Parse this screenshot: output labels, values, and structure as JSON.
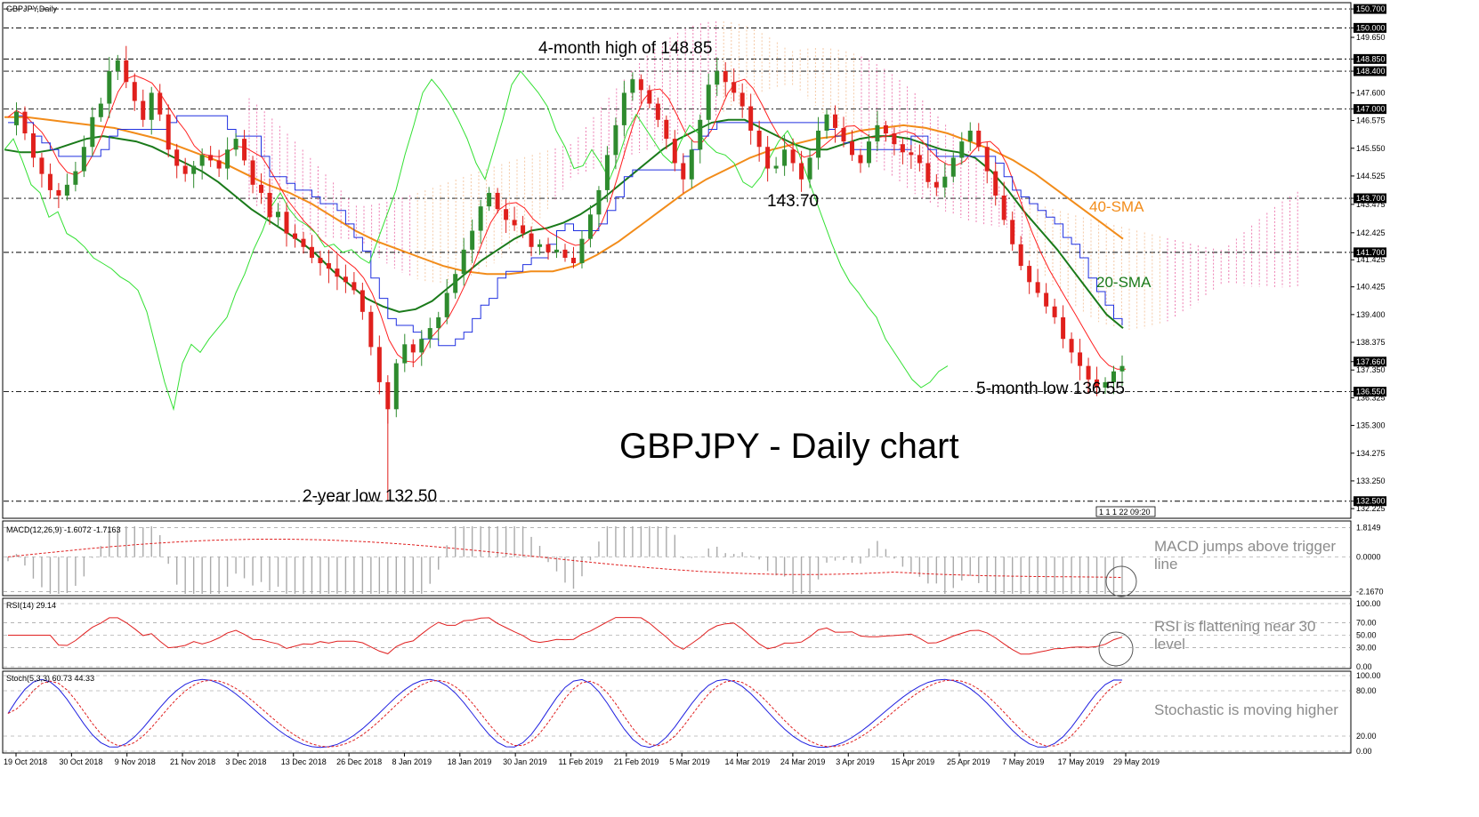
{
  "symbol_label": "GBPJPY,Daily",
  "chart_title": "GBPJPY - Daily chart",
  "colors": {
    "bull": "#2e8b2e",
    "bear": "#e0201c",
    "sma20": "#1a7a1a",
    "sma40": "#f28c1a",
    "tenkan": "#ff2020",
    "kijun": "#2030e0",
    "chikou": "#33e033",
    "cloud_pink": "#e8559a",
    "cloud_peach": "#f2b98a",
    "macd": "#e02020",
    "stoch_k": "#2020e0",
    "stoch_d": "#e02020",
    "grid": "#000000",
    "note_grey": "#8c8c8c"
  },
  "annotations": {
    "high": "4-month high of 148.85",
    "mid_low": "143.70",
    "low5": "5-month low 136.55",
    "low2y": "2-year low 132.50",
    "sma40": "40-SMA",
    "sma20": "20-SMA",
    "macd_note_1": "MACD jumps above trigger",
    "macd_note_2": "line",
    "rsi_note_1": "RSI is flattening near 30",
    "rsi_note_2": "level",
    "stoch_note": "Stochastic is moving higher"
  },
  "indicator_labels": {
    "macd": "MACD(12,26,9) -1.6072 -1.7163",
    "rsi": "RSI(14) 29.14",
    "stoch": "Stoch(5,3,3) 60.73 44.33"
  },
  "time_box": "1 1 1 22 09:20",
  "chart_data": {
    "type": "candlestick",
    "title": "GBPJPY - Daily chart",
    "price_ticks": [
      "150.700",
      "150.000",
      "149.650",
      "148.850",
      "148.400",
      "147.600",
      "147.000",
      "146.575",
      "145.550",
      "144.525",
      "143.700",
      "143.475",
      "142.425",
      "141.700",
      "141.425",
      "140.425",
      "139.400",
      "138.375",
      "137.660",
      "137.350",
      "136.550",
      "136.325",
      "135.300",
      "134.275",
      "133.250",
      "132.500",
      "132.225"
    ],
    "highlighted_prices": [
      "150.700",
      "150.000",
      "148.850",
      "148.400",
      "147.000",
      "143.700",
      "141.700",
      "137.660",
      "136.550",
      "132.500"
    ],
    "horizontal_levels": [
      150.7,
      150.0,
      148.85,
      148.4,
      147.0,
      143.7,
      141.7,
      136.55,
      132.5
    ],
    "ylim": [
      131.9,
      150.9
    ],
    "x_labels": [
      "19 Oct 2018",
      "30 Oct 2018",
      "9 Nov 2018",
      "21 Nov 2018",
      "3 Dec 2018",
      "13 Dec 2018",
      "26 Dec 2018",
      "8 Jan 2019",
      "18 Jan 2019",
      "30 Jan 2019",
      "11 Feb 2019",
      "21 Feb 2019",
      "5 Mar 2019",
      "14 Mar 2019",
      "24 Mar 2019",
      "3 Apr 2019",
      "15 Apr 2019",
      "25 Apr 2019",
      "7 May 2019",
      "17 May 2019",
      "29 May 2019"
    ],
    "close_path": [
      146.4,
      146.9,
      146.1,
      145.2,
      144.6,
      144.0,
      143.8,
      144.2,
      144.7,
      145.6,
      146.7,
      147.2,
      148.4,
      148.8,
      148.0,
      147.3,
      146.6,
      147.6,
      146.8,
      145.5,
      144.9,
      144.6,
      144.9,
      145.3,
      145.1,
      144.8,
      145.5,
      145.9,
      145.1,
      144.2,
      143.9,
      143.0,
      143.2,
      142.4,
      142.2,
      141.9,
      141.5,
      141.3,
      141.1,
      140.8,
      140.6,
      140.3,
      139.5,
      138.2,
      136.9,
      135.9,
      137.6,
      138.3,
      138.0,
      138.5,
      138.9,
      139.3,
      140.2,
      140.9,
      141.8,
      142.5,
      143.4,
      143.9,
      143.3,
      142.9,
      142.7,
      142.4,
      141.9,
      142.0,
      141.7,
      141.8,
      141.5,
      141.3,
      142.2,
      143.1,
      144.0,
      145.3,
      146.4,
      147.6,
      148.1,
      147.7,
      147.2,
      146.6,
      145.9,
      145.0,
      144.4,
      145.5,
      146.6,
      147.9,
      148.4,
      148.0,
      147.6,
      147.1,
      146.2,
      145.6,
      144.8,
      144.9,
      145.5,
      145.0,
      144.4,
      145.2,
      146.2,
      146.8,
      146.3,
      145.8,
      145.3,
      145.0,
      145.8,
      146.4,
      146.1,
      145.7,
      145.4,
      145.3,
      145.0,
      144.3,
      144.1,
      144.5,
      145.2,
      145.8,
      146.2,
      145.6,
      144.7,
      143.8,
      142.9,
      142.0,
      141.2,
      140.6,
      140.2,
      139.7,
      139.3,
      138.5,
      138.0,
      137.5,
      137.0,
      136.7,
      136.9,
      137.3,
      137.5
    ],
    "sma20": [
      145.5,
      145.4,
      145.4,
      145.5,
      145.7,
      145.9,
      146.0,
      145.9,
      145.8,
      145.6,
      145.3,
      145.0,
      144.7,
      144.3,
      143.8,
      143.3,
      142.9,
      142.5,
      142.1,
      141.6,
      141.0,
      140.5,
      140.0,
      139.7,
      139.5,
      139.6,
      139.9,
      140.4,
      140.9,
      141.4,
      141.8,
      142.2,
      142.5,
      142.6,
      142.8,
      143.1,
      143.5,
      144.0,
      144.5,
      145.0,
      145.5,
      145.9,
      146.2,
      146.5,
      146.6,
      146.6,
      146.3,
      146.0,
      145.7,
      145.5,
      145.5,
      145.7,
      145.9,
      146.0,
      146.0,
      145.9,
      145.7,
      145.5,
      145.4,
      145.2,
      144.7,
      144.0,
      143.2,
      142.5,
      141.8,
      141.0,
      140.2,
      139.4,
      138.9
    ],
    "sma40": [
      146.7,
      146.7,
      146.6,
      146.5,
      146.4,
      146.3,
      146.1,
      145.9,
      145.6,
      145.3,
      145.0,
      144.6,
      144.2,
      143.9,
      143.5,
      143.0,
      142.5,
      142.1,
      141.8,
      141.5,
      141.2,
      141.0,
      140.9,
      140.9,
      141.0,
      141.0,
      141.2,
      141.6,
      142.1,
      142.7,
      143.3,
      143.9,
      144.4,
      144.8,
      145.2,
      145.5,
      145.7,
      145.9,
      146.0,
      146.2,
      146.3,
      146.4,
      146.3,
      146.1,
      145.8,
      145.5,
      145.1,
      144.6,
      144.0,
      143.4,
      142.8,
      142.2
    ],
    "macd": {
      "value": -1.6072,
      "signal": -1.7163,
      "ticks": [
        "1.8149",
        "0.0000",
        "-2.1670"
      ]
    },
    "rsi": {
      "value": 29.14,
      "ticks": [
        "100.00",
        "70.00",
        "50.00",
        "30.00",
        "0.00"
      ]
    },
    "stoch": {
      "k": 60.73,
      "d": 44.33,
      "ticks": [
        "100.00",
        "80.00",
        "20.00",
        "0.00"
      ]
    }
  }
}
